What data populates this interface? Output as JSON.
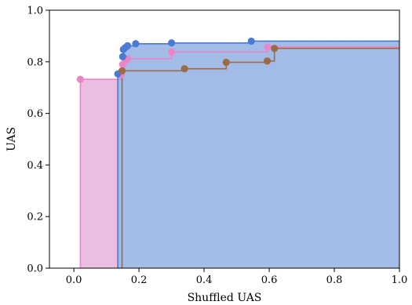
{
  "chart_data": {
    "type": "line",
    "xlabel": "Shuffled UAS",
    "ylabel": "UAS",
    "xlim": [
      -0.075,
      1.0
    ],
    "ylim": [
      0.0,
      1.0
    ],
    "xticks": [
      0.0,
      0.2,
      0.4,
      0.6,
      0.8,
      1.0
    ],
    "yticks": [
      0.0,
      0.2,
      0.4,
      0.6,
      0.8,
      1.0
    ],
    "xtick_labels": [
      "0.0",
      "0.2",
      "0.4",
      "0.6",
      "0.8",
      "1.0"
    ],
    "ytick_labels": [
      "0.0",
      "0.2",
      "0.4",
      "0.6",
      "0.8",
      "1.0"
    ],
    "grid": false,
    "legend": "none",
    "series": [
      {
        "color": "#ea86c8",
        "fill": "#eabee0",
        "points": [
          [
            0.02,
            0.732
          ],
          [
            0.145,
            0.75
          ],
          [
            0.15,
            0.79
          ],
          [
            0.16,
            0.805
          ],
          [
            0.165,
            0.812
          ],
          [
            0.3,
            0.838
          ],
          [
            0.595,
            0.857
          ]
        ]
      },
      {
        "color": "#4a7ad2",
        "fill": "#a3bce7",
        "points": [
          [
            0.135,
            0.753
          ],
          [
            0.15,
            0.82
          ],
          [
            0.152,
            0.848
          ],
          [
            0.158,
            0.855
          ],
          [
            0.165,
            0.862
          ],
          [
            0.19,
            0.87
          ],
          [
            0.3,
            0.873
          ],
          [
            0.545,
            0.88
          ]
        ]
      },
      {
        "color": "#9b6b46",
        "fill": "none",
        "points": [
          [
            0.148,
            0.765
          ],
          [
            0.34,
            0.773
          ],
          [
            0.468,
            0.798
          ],
          [
            0.594,
            0.803
          ],
          [
            0.616,
            0.852
          ]
        ]
      }
    ]
  }
}
